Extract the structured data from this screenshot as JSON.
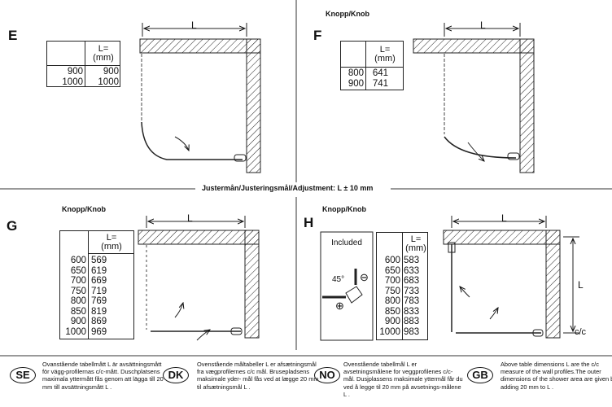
{
  "adjustment_title": "Justermån/Justeringsmål/Adjustment: L ± 10 mm",
  "dimension_label": "L",
  "cc_label": "c/c",
  "table_header": {
    "line1": "L=",
    "line2": "(mm)"
  },
  "panels": [
    {
      "letter": "E",
      "knob_label": "",
      "rows": [
        [
          "900",
          "900"
        ],
        [
          "1000",
          "1000"
        ]
      ]
    },
    {
      "letter": "F",
      "knob_label": "Knopp/Knob",
      "rows": [
        [
          "800",
          "641"
        ],
        [
          "900",
          "741"
        ]
      ]
    },
    {
      "letter": "G",
      "knob_label": "Knopp/Knob",
      "rows": [
        [
          "600",
          "569"
        ],
        [
          "650",
          "619"
        ],
        [
          "700",
          "669"
        ],
        [
          "750",
          "719"
        ],
        [
          "800",
          "769"
        ],
        [
          "850",
          "819"
        ],
        [
          "900",
          "869"
        ],
        [
          "1000",
          "969"
        ]
      ]
    },
    {
      "letter": "H",
      "knob_label": "Knopp/Knob",
      "rows": [
        [
          "600",
          "583"
        ],
        [
          "650",
          "633"
        ],
        [
          "700",
          "683"
        ],
        [
          "750",
          "733"
        ],
        [
          "800",
          "783"
        ],
        [
          "850",
          "833"
        ],
        [
          "900",
          "883"
        ],
        [
          "1000",
          "983"
        ]
      ]
    }
  ],
  "included_box": {
    "title": "Included",
    "angle": "45°",
    "minus": "⊖",
    "plus": "⊕"
  },
  "notes": [
    {
      "code": "SE",
      "text": "Ovanstående tabellmått L är avsättningsmått för vägg-profilernas c/c-mått. Duschplatsens maximala yttermått fås genom att lägga till 20 mm till avsättningsmått L ."
    },
    {
      "code": "DK",
      "text": "Ovenstående måltabeller L er afsætningsmål fra vægprofilernes c/c mål. Brusepladsens maksimale yder- mål fås ved at lægge 20 mm til afsætningsmål L ."
    },
    {
      "code": "NO",
      "text": "Ovenstående tabellmål L er avsetningsmålene for veggprofilenes c/c- mål. Dusjplassens maksimale yttermål får du ved å legge til 20 mm på avsetnings-målene L ."
    },
    {
      "code": "GB",
      "text": "Above table dimensions L are the c/c measure of the wall profiles.The outer dimensions of the shower area are given by adding 20 mm to L ."
    }
  ]
}
